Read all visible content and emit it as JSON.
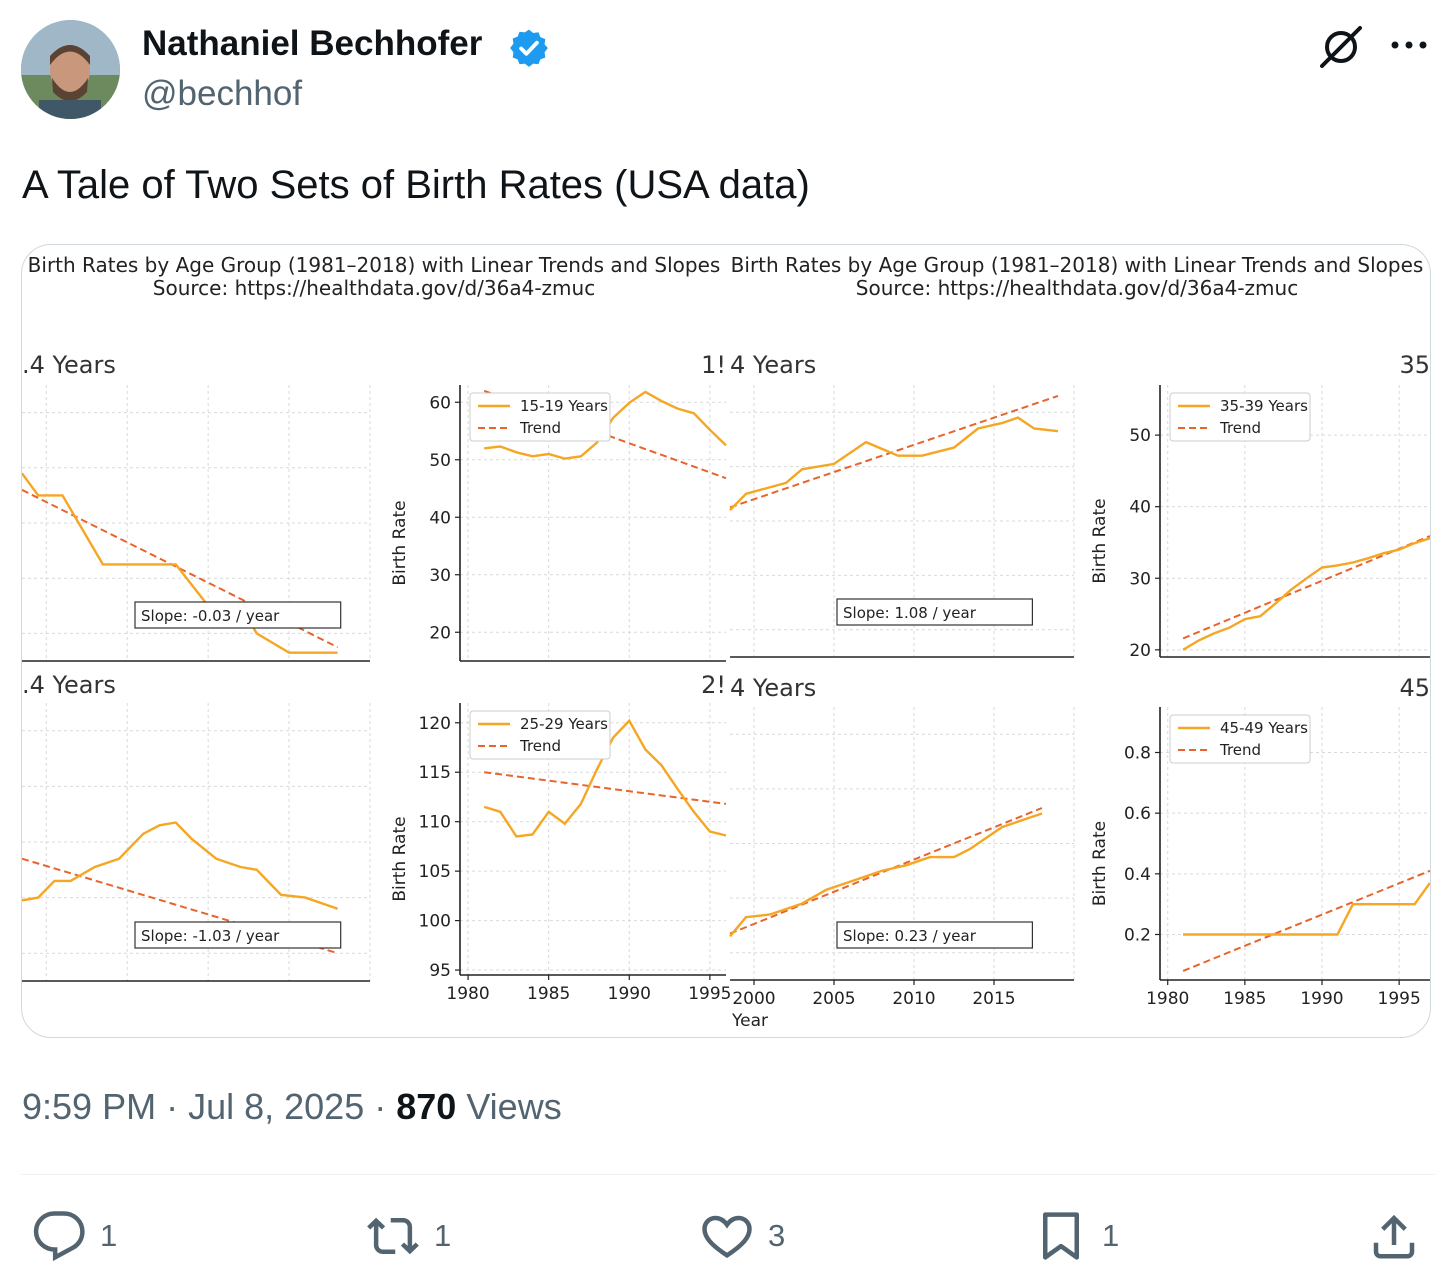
{
  "tweet": {
    "author_name": "Nathaniel Bechhofer",
    "handle": "@bechhof",
    "text": "A Tale of Two Sets of Birth Rates (USA data)",
    "time": "9:59 PM",
    "date": "Jul 8, 2025",
    "views_count": "870",
    "views_label": "Views",
    "verified_color": "#1d9bf0"
  },
  "actions": {
    "replies": "1",
    "reposts": "1",
    "likes": "3",
    "bookmarks": "1"
  },
  "icons": [
    "avatar",
    "verified-badge-icon",
    "grok-icon",
    "more-icon",
    "reply-icon",
    "repost-icon",
    "like-icon",
    "bookmark-icon",
    "share-icon"
  ],
  "image": {
    "left": {
      "title": "Birth Rates by Age Group (1981–2018) with Linear Trends and Slopes",
      "source": "Source: https://healthdata.gov/d/36a4-zmuc",
      "panel_a_title": ".4 Years",
      "panel_b_title": "1!",
      "panel_c_title": ".4 Years",
      "panel_d_title": "2!",
      "xlabel": "Year",
      "ylabel": "Birth Rate"
    },
    "right": {
      "title": "Birth Rates by Age Group (1981–2018) with Linear Trends and Slopes",
      "source": "Source: https://healthdata.gov/d/36a4-zmuc",
      "panel_a_title": "4 Years",
      "panel_b_title": "35",
      "panel_c_title": "4 Years",
      "panel_d_title": "45",
      "xlabel": "Year",
      "ylabel": "Birth Rate"
    },
    "line_color": "#f5a623",
    "trend_color": "#e8642c"
  },
  "chart_data": [
    {
      "type": "line",
      "title": "",
      "xlabel": "",
      "ylabel": "",
      "xlim": [
        1998.5,
        2020
      ],
      "ylim": [
        0,
        10
      ],
      "x_ticks": [],
      "y_ticks": [],
      "series": [
        {
          "values": [
            [
              1998.5,
              6.8
            ],
            [
              1999.5,
              6.0
            ],
            [
              2001,
              6.0
            ],
            [
              2003.5,
              3.5
            ],
            [
              2008,
              3.5
            ],
            [
              2010,
              2.0
            ],
            [
              2012,
              2.0
            ],
            [
              2013,
              1.0
            ],
            [
              2015,
              0.3
            ],
            [
              2018,
              0.3
            ]
          ]
        },
        {
          "name": "",
          "values": [
            [
              1998.5,
              6.2
            ],
            [
              2018,
              0.5
            ]
          ]
        }
      ],
      "annotation": "Slope: -0.03 / year"
    },
    {
      "type": "line",
      "title": "",
      "xlabel": "",
      "ylabel": "Birth Rate",
      "xlim": [
        1979.5,
        1996
      ],
      "ylim": [
        15,
        63
      ],
      "x_ticks": [],
      "y_ticks": [
        "20",
        "30",
        "40",
        "50",
        "60"
      ],
      "legend": [
        "15-19 Years",
        "Trend"
      ],
      "legend_position": "top-left",
      "series": [
        {
          "name": "15-19 Years",
          "values": [
            [
              1981,
              52
            ],
            [
              1982,
              52.3
            ],
            [
              1983,
              51.3
            ],
            [
              1984,
              50.6
            ],
            [
              1985,
              51
            ],
            [
              1986,
              50.2
            ],
            [
              1987,
              50.6
            ],
            [
              1988,
              53
            ],
            [
              1989,
              57.3
            ],
            [
              1990,
              59.9
            ],
            [
              1991,
              61.8
            ],
            [
              1992,
              60.2
            ],
            [
              1993,
              58.9
            ],
            [
              1994,
              58.1
            ],
            [
              1995,
              55.2
            ],
            [
              1996,
              52.5
            ]
          ]
        },
        {
          "name": "Trend",
          "values": [
            [
              1981,
              62
            ],
            [
              1996,
              46.8
            ]
          ]
        }
      ]
    },
    {
      "type": "line",
      "title": "",
      "xlabel": "",
      "ylabel": "",
      "xlim": [
        1998.5,
        2020
      ],
      "ylim": [
        0,
        10
      ],
      "x_ticks": [],
      "y_ticks": [],
      "series": [
        {
          "values": [
            [
              1998.5,
              2.9
            ],
            [
              1999.5,
              3.0
            ],
            [
              2000.5,
              3.6
            ],
            [
              2001.5,
              3.6
            ],
            [
              2003,
              4.1
            ],
            [
              2004.5,
              4.4
            ],
            [
              2006,
              5.3
            ],
            [
              2007,
              5.6
            ],
            [
              2008,
              5.7
            ],
            [
              2009,
              5.1
            ],
            [
              2010.5,
              4.4
            ],
            [
              2012,
              4.1
            ],
            [
              2013,
              4.0
            ],
            [
              2014.5,
              3.1
            ],
            [
              2016,
              3.0
            ],
            [
              2018,
              2.6
            ]
          ]
        },
        {
          "name": "",
          "values": [
            [
              1998.5,
              4.4
            ],
            [
              2018,
              1.0
            ]
          ]
        }
      ],
      "annotation": "Slope: -1.03 / year"
    },
    {
      "type": "line",
      "title": "",
      "xlabel": "",
      "ylabel": "Birth Rate",
      "xlim": [
        1979.5,
        1996
      ],
      "ylim": [
        94.5,
        122
      ],
      "x_ticks": [
        "1980",
        "1985",
        "1990",
        "1995"
      ],
      "y_ticks": [
        "95",
        "100",
        "105",
        "110",
        "115",
        "120"
      ],
      "legend": [
        "25-29 Years",
        "Trend"
      ],
      "legend_position": "top-left",
      "series": [
        {
          "name": "25-29 Years",
          "values": [
            [
              1981,
              111.5
            ],
            [
              1982,
              111
            ],
            [
              1983,
              108.5
            ],
            [
              1984,
              108.7
            ],
            [
              1985,
              111
            ],
            [
              1986,
              109.8
            ],
            [
              1987,
              111.8
            ],
            [
              1988,
              115.3
            ],
            [
              1989,
              118.5
            ],
            [
              1990,
              120.2
            ],
            [
              1991,
              117.3
            ],
            [
              1992,
              115.7
            ],
            [
              1993,
              113.3
            ],
            [
              1994,
              111
            ],
            [
              1995,
              109
            ],
            [
              1996,
              108.6
            ]
          ]
        },
        {
          "name": "Trend",
          "values": [
            [
              1981,
              115
            ],
            [
              1996,
              111.8
            ]
          ]
        }
      ]
    },
    {
      "type": "line",
      "title": "",
      "xlabel": "",
      "ylabel": "",
      "xlim": [
        1998.5,
        2020
      ],
      "ylim": [
        0,
        10
      ],
      "x_ticks": [],
      "y_ticks": [],
      "series": [
        {
          "values": [
            [
              1998.5,
              5.4
            ],
            [
              1999.5,
              6.0
            ],
            [
              2002,
              6.4
            ],
            [
              2003,
              6.9
            ],
            [
              2005,
              7.1
            ],
            [
              2007,
              7.9
            ],
            [
              2009,
              7.4
            ],
            [
              2010.5,
              7.4
            ],
            [
              2012.5,
              7.7
            ],
            [
              2014,
              8.4
            ],
            [
              2015.5,
              8.6
            ],
            [
              2016.5,
              8.8
            ],
            [
              2017.5,
              8.4
            ],
            [
              2019,
              8.3
            ]
          ]
        },
        {
          "name": "",
          "values": [
            [
              1998.5,
              5.5
            ],
            [
              2019,
              9.6
            ]
          ]
        }
      ],
      "annotation": "Slope: 1.08 / year"
    },
    {
      "type": "line",
      "title": "",
      "xlabel": "",
      "ylabel": "Birth Rate",
      "xlim": [
        1979.5,
        1997
      ],
      "ylim": [
        19,
        57
      ],
      "x_ticks": [],
      "y_ticks": [
        "20",
        "30",
        "40",
        "50"
      ],
      "legend": [
        "35-39 Years",
        "Trend"
      ],
      "legend_position": "top-left",
      "series": [
        {
          "name": "35-39 Years",
          "values": [
            [
              1981,
              20
            ],
            [
              1982,
              21.3
            ],
            [
              1983,
              22.3
            ],
            [
              1984,
              23.1
            ],
            [
              1985,
              24.3
            ],
            [
              1986,
              24.7
            ],
            [
              1987,
              26.5
            ],
            [
              1988,
              28.4
            ],
            [
              1989,
              30
            ],
            [
              1990,
              31.5
            ],
            [
              1991,
              31.8
            ],
            [
              1992,
              32.2
            ],
            [
              1993,
              32.8
            ],
            [
              1994,
              33.5
            ],
            [
              1995,
              34
            ],
            [
              1996,
              34.9
            ],
            [
              1997,
              35.6
            ]
          ]
        },
        {
          "name": "Trend",
          "values": [
            [
              1981,
              21.6
            ],
            [
              1997,
              35.9
            ]
          ]
        }
      ]
    },
    {
      "type": "line",
      "title": "",
      "xlabel": "Year",
      "ylabel": "",
      "xlim": [
        1998.5,
        2020
      ],
      "ylim": [
        0,
        10
      ],
      "x_ticks": [
        "2000",
        "2005",
        "2010",
        "2015"
      ],
      "y_ticks": [],
      "series": [
        {
          "values": [
            [
              1998.5,
              1.6
            ],
            [
              1999.5,
              2.3
            ],
            [
              2001,
              2.4
            ],
            [
              2003,
              2.8
            ],
            [
              2004.5,
              3.3
            ],
            [
              2006,
              3.6
            ],
            [
              2008,
              4.0
            ],
            [
              2009.5,
              4.2
            ],
            [
              2011,
              4.5
            ],
            [
              2012.5,
              4.5
            ],
            [
              2013.5,
              4.8
            ],
            [
              2015.5,
              5.6
            ],
            [
              2017,
              5.9
            ],
            [
              2018,
              6.1
            ]
          ]
        },
        {
          "name": "",
          "values": [
            [
              1998.5,
              1.7
            ],
            [
              2018,
              6.3
            ]
          ]
        }
      ],
      "annotation": "Slope: 0.23 / year"
    },
    {
      "type": "line",
      "title": "",
      "xlabel": "",
      "ylabel": "Birth Rate",
      "xlim": [
        1979.5,
        1997
      ],
      "ylim": [
        0.05,
        0.95
      ],
      "x_ticks": [
        "1980",
        "1985",
        "1990",
        "1995"
      ],
      "y_ticks": [
        "0.2",
        "0.4",
        "0.6",
        "0.8"
      ],
      "legend": [
        "45-49 Years",
        "Trend"
      ],
      "legend_position": "top-left",
      "series": [
        {
          "name": "45-49 Years",
          "values": [
            [
              1981,
              0.2
            ],
            [
              1991,
              0.2
            ],
            [
              1992,
              0.3
            ],
            [
              1996,
              0.3
            ],
            [
              1997,
              0.37
            ]
          ]
        },
        {
          "name": "Trend",
          "values": [
            [
              1981,
              0.08
            ],
            [
              1997,
              0.41
            ]
          ]
        }
      ]
    }
  ]
}
